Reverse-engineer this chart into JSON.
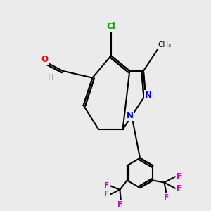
{
  "background_color": "#ebebeb",
  "bond_color": "#000000",
  "bond_width": 1.5,
  "atom_colors": {
    "C": "#000000",
    "N": "#0000ff",
    "O": "#ff0000",
    "Cl": "#00aa00",
    "F": "#cc00cc",
    "H": "#555555"
  },
  "font_size": 8.5,
  "small_font": 7.5
}
